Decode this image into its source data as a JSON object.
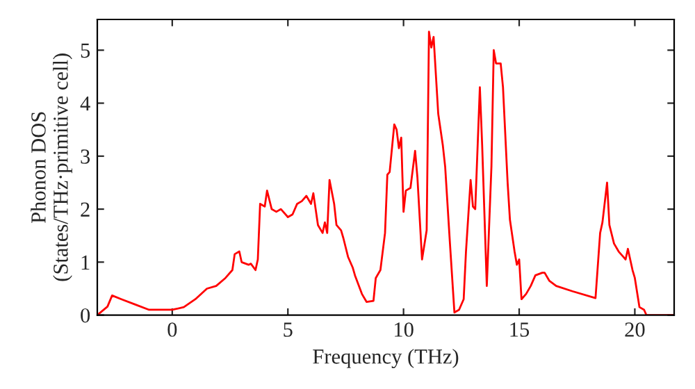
{
  "chart_data": {
    "type": "line",
    "xlabel": "Frequency (THz)",
    "ylabel": "Phonon DOS\n(States/THz·primitive cell)",
    "xlim": [
      -3.24,
      21.7
    ],
    "ylim": [
      0,
      5.58
    ],
    "xticks": [
      0,
      5,
      10,
      15,
      20
    ],
    "yticks": [
      0,
      1,
      2,
      3,
      4,
      5
    ],
    "grid": false,
    "series": [
      {
        "color": "#ff0000",
        "x": [
          -3.24,
          -2.8,
          -2.6,
          -2.2,
          -1.6,
          -1.0,
          -0.5,
          0.0,
          0.5,
          1.0,
          1.5,
          1.9,
          2.3,
          2.6,
          2.7,
          2.9,
          3.0,
          3.3,
          3.4,
          3.6,
          3.7,
          3.8,
          4.0,
          4.1,
          4.3,
          4.5,
          4.7,
          5.0,
          5.2,
          5.4,
          5.6,
          5.8,
          6.0,
          6.1,
          6.3,
          6.5,
          6.6,
          6.7,
          6.8,
          7.0,
          7.1,
          7.3,
          7.4,
          7.6,
          7.8,
          7.9,
          8.2,
          8.4,
          8.7,
          8.8,
          9.0,
          9.2,
          9.3,
          9.4,
          9.6,
          9.7,
          9.8,
          9.9,
          10.0,
          10.1,
          10.3,
          10.5,
          10.6,
          10.8,
          11.0,
          11.1,
          11.2,
          11.3,
          11.5,
          11.7,
          11.8,
          12.0,
          12.2,
          12.4,
          12.6,
          12.7,
          12.9,
          13.0,
          13.1,
          13.3,
          13.4,
          13.6,
          13.8,
          13.9,
          14.0,
          14.2,
          14.3,
          14.5,
          14.6,
          14.8,
          14.9,
          15.0,
          15.1,
          15.3,
          15.5,
          15.7,
          16.0,
          16.1,
          16.3,
          16.6,
          17.3,
          18.3,
          18.5,
          18.6,
          18.8,
          18.9,
          19.1,
          19.3,
          19.5,
          19.6,
          19.7,
          19.9,
          20.0,
          20.2,
          20.4,
          20.5,
          21.7
        ],
        "values": [
          0.0,
          0.16,
          0.37,
          0.3,
          0.2,
          0.1,
          0.1,
          0.1,
          0.15,
          0.3,
          0.5,
          0.55,
          0.7,
          0.85,
          1.15,
          1.2,
          1.0,
          0.95,
          0.97,
          0.85,
          1.05,
          2.1,
          2.05,
          2.35,
          2.0,
          1.95,
          2.0,
          1.85,
          1.9,
          2.1,
          2.15,
          2.25,
          2.1,
          2.3,
          1.7,
          1.55,
          1.75,
          1.55,
          2.55,
          2.1,
          1.7,
          1.6,
          1.45,
          1.1,
          0.9,
          0.75,
          0.4,
          0.25,
          0.27,
          0.7,
          0.85,
          1.55,
          2.65,
          2.7,
          3.6,
          3.5,
          3.15,
          3.35,
          1.95,
          2.35,
          2.4,
          3.1,
          2.6,
          1.05,
          1.6,
          5.35,
          5.05,
          5.25,
          3.8,
          3.2,
          2.8,
          1.4,
          0.05,
          0.1,
          0.3,
          1.2,
          2.55,
          2.05,
          2.0,
          4.3,
          3.2,
          0.55,
          2.8,
          5.0,
          4.75,
          4.75,
          4.3,
          2.5,
          1.8,
          1.2,
          0.95,
          1.05,
          0.3,
          0.4,
          0.55,
          0.75,
          0.8,
          0.8,
          0.65,
          0.55,
          0.45,
          0.32,
          1.55,
          1.75,
          2.5,
          1.7,
          1.35,
          1.2,
          1.1,
          1.05,
          1.25,
          0.85,
          0.7,
          0.15,
          0.1,
          0.0,
          0.0
        ]
      }
    ]
  }
}
